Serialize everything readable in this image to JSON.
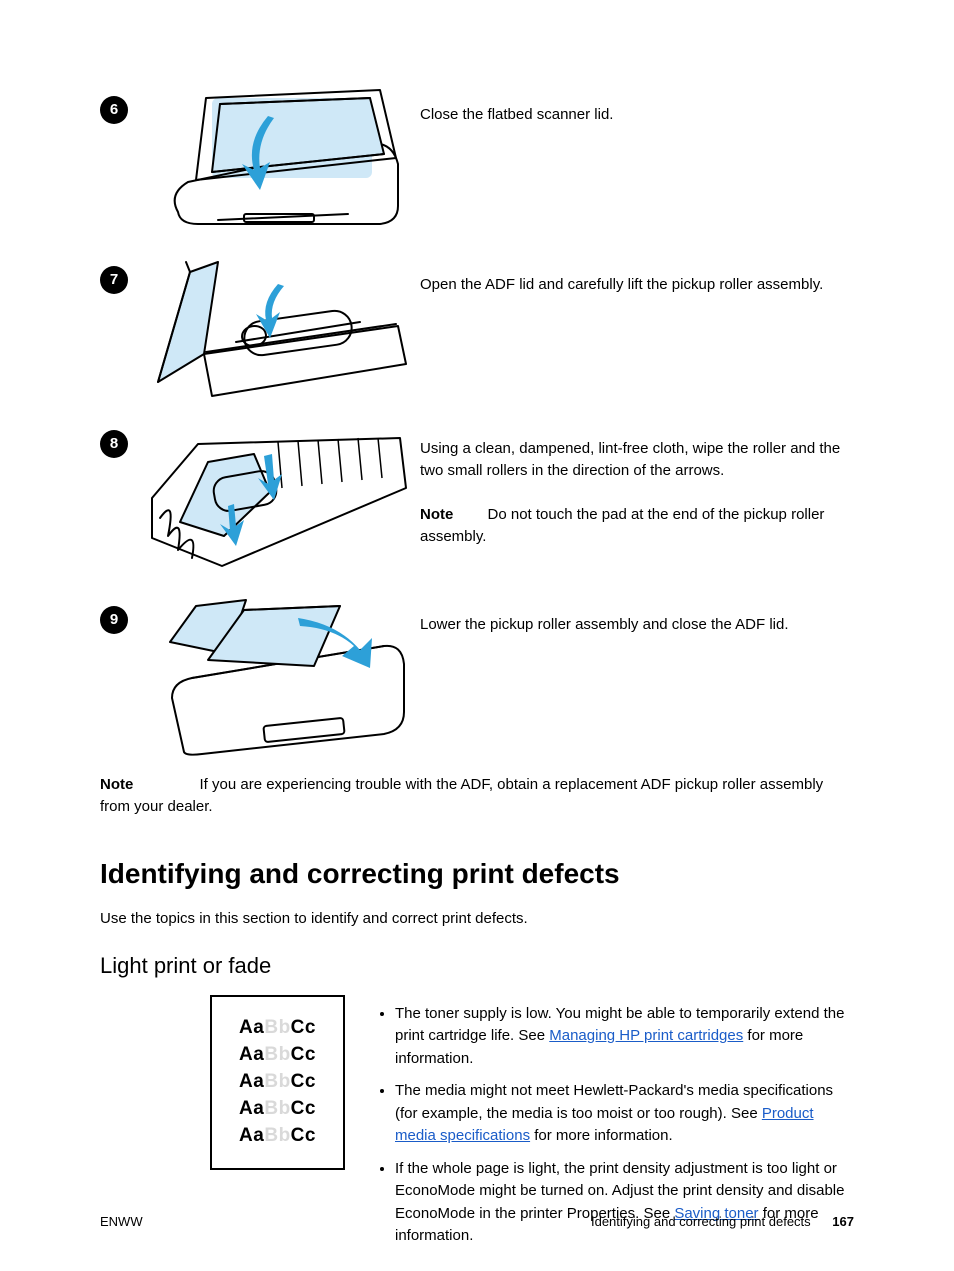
{
  "steps": [
    {
      "num": "6",
      "text": "Close the flatbed scanner lid."
    },
    {
      "num": "7",
      "text": "Open the ADF lid and carefully lift the pickup roller assembly."
    },
    {
      "num": "8",
      "text": "Using a clean, dampened, lint-free cloth, wipe the roller and the two small rollers in the direction of the arrows.",
      "note_label": "Note",
      "note": "Do not touch the pad at the end of the pickup roller assembly."
    },
    {
      "num": "9",
      "text": "Lower the pickup roller assembly and close the ADF lid."
    }
  ],
  "after_steps_note_label": "Note",
  "after_steps_note": "If you are experiencing trouble with the ADF, obtain a replacement ADF pickup roller assembly from your dealer.",
  "section_title": "Identifying and correcting print defects",
  "section_intro": "Use the topics in this section to identify and correct print defects.",
  "subsection_title": "Light print or fade",
  "defect_sample": [
    "AaBbCc",
    "AaBbCc",
    "AaBbCc",
    "AaBbCc",
    "AaBbCc"
  ],
  "defect_faded_cols": [
    2,
    3
  ],
  "defect_bullets": [
    "The toner supply is low. You might be able to temporarily extend the print cartridge life. See ",
    "The media might not meet Hewlett-Packard's media specifications (for example, the media is too moist or too rough). See ",
    "If the whole page is light, the print density adjustment is too light or EconoMode might be turned on. Adjust the print density and disable EconoMode in the printer Properties. See "
  ],
  "defect_links": [
    "Managing HP print cartridges",
    "Product media specifications",
    "Saving toner"
  ],
  "defect_tails": [
    " for more information.",
    " for more information.",
    " for more information."
  ],
  "footer_left": "ENWW",
  "footer_right": "Identifying and correcting print defects",
  "page_number": "167",
  "colors": {
    "link": "#1a5cc8",
    "tint": "#cfe8f7",
    "arrow": "#2da0d8",
    "faded": "#d9d9d9"
  }
}
